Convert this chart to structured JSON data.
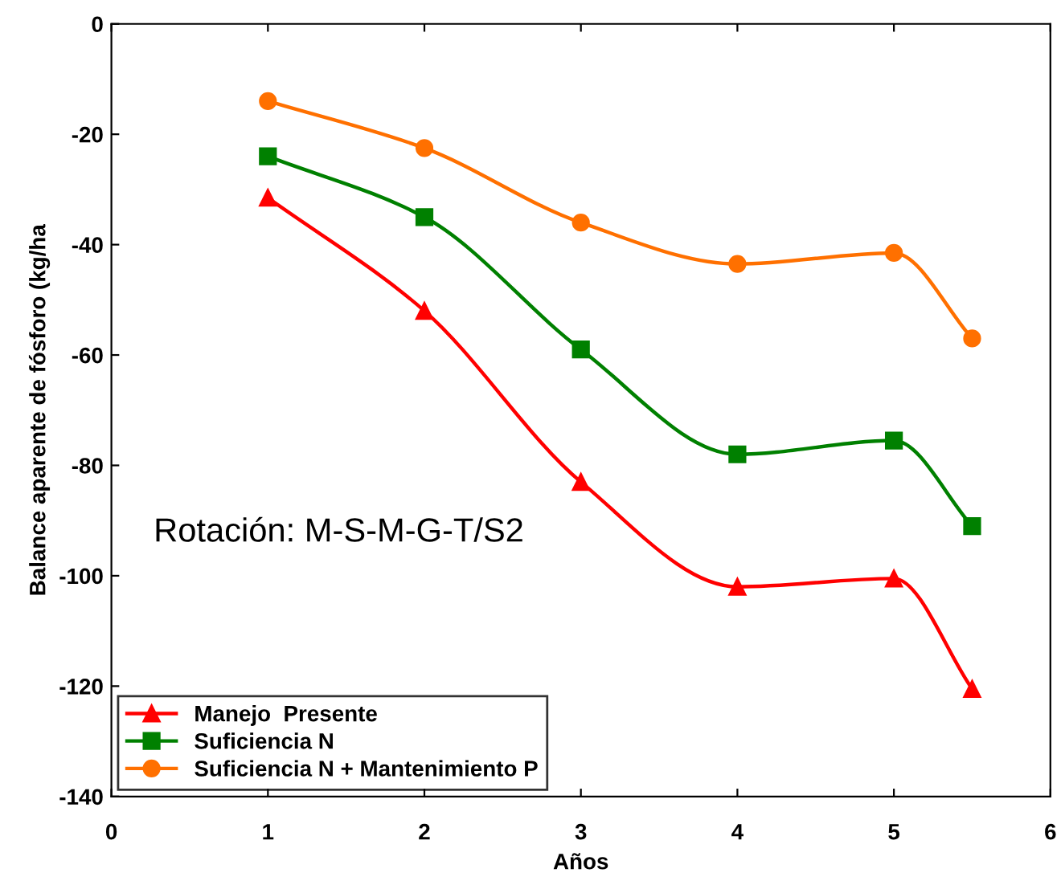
{
  "chart_data": {
    "type": "line",
    "xlabel": "Años",
    "ylabel": "Balance aparente de fósforo (kg/ha",
    "x": [
      1,
      2,
      3,
      4,
      5,
      5.5
    ],
    "series": [
      {
        "name": "Manejo  Presente",
        "color": "#ff0000",
        "marker": "triangle",
        "values": [
          -31.5,
          -52,
          -83,
          -102,
          -100.5,
          -120.5
        ]
      },
      {
        "name": "Suficiencia N",
        "color": "#008000",
        "marker": "square",
        "values": [
          -24,
          -35,
          -59,
          -78,
          -75.5,
          -91
        ]
      },
      {
        "name": "Suficiencia N + Mantenimiento P",
        "color": "#ff7000",
        "marker": "circle",
        "values": [
          -14,
          -22.5,
          -36,
          -43.5,
          -41.5,
          -57
        ]
      }
    ],
    "xlim": [
      0,
      6
    ],
    "xticks": [
      0,
      1,
      2,
      3,
      4,
      5,
      6
    ],
    "ylim": [
      -140,
      0
    ],
    "yticks": [
      -140,
      -120,
      -100,
      -80,
      -60,
      -40,
      -20,
      0
    ],
    "annotations": [
      "Rotación: M-S-M-G-T/S2"
    ],
    "legend": "bottom left",
    "grid": false,
    "line_style": "solid"
  }
}
